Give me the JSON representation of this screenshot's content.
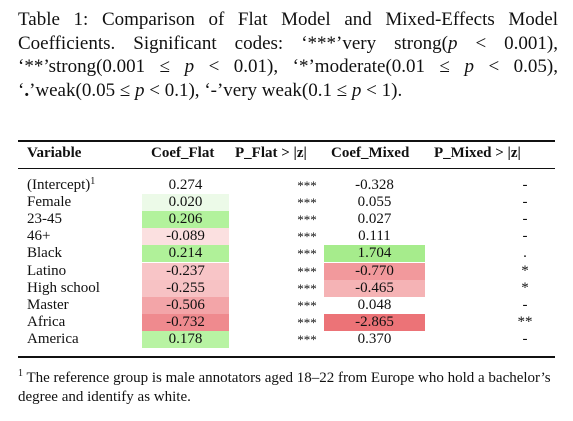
{
  "caption": {
    "label": "Table 1:",
    "title": "Comparison of Flat Model and Mixed-Effects Model Coefficients. Significant codes:",
    "codes": [
      {
        "code": "***",
        "desc": "very strong",
        "range": "(p < 0.001),"
      },
      {
        "code": "**",
        "desc": "strong",
        "range": "(0.001 ≤ p < 0.01),"
      },
      {
        "code": "*",
        "desc": "moderate",
        "range": "(0.01 ≤ p < 0.05),"
      },
      {
        "code": ".",
        "desc": "weak",
        "range": "(0.05 ≤ p < 0.1),"
      },
      {
        "code": "-",
        "desc": "very weak",
        "range": "(0.1 ≤ p < 1)."
      }
    ]
  },
  "table": {
    "headers": [
      "Variable",
      "Coef_Flat",
      "P_Flat > |z|",
      "Coef_Mixed",
      "P_Mixed > |z|"
    ],
    "rows": [
      {
        "variable": "(Intercept)",
        "sup": "1",
        "coef_flat": "0.274",
        "flat_bg": "",
        "p_flat": "***",
        "coef_mixed": "-0.328",
        "mixed_bg": "",
        "p_mixed": "-"
      },
      {
        "variable": "Female",
        "sup": "",
        "coef_flat": "0.020",
        "flat_bg": "#ecfae8",
        "p_flat": "***",
        "coef_mixed": "0.055",
        "mixed_bg": "",
        "p_mixed": "-"
      },
      {
        "variable": "23-45",
        "sup": "",
        "coef_flat": "0.206",
        "flat_bg": "#b2f29c",
        "p_flat": "***",
        "coef_mixed": "0.027",
        "mixed_bg": "",
        "p_mixed": "-"
      },
      {
        "variable": "46+",
        "sup": "",
        "coef_flat": "-0.089",
        "flat_bg": "#fbe0e0",
        "p_flat": "***",
        "coef_mixed": "0.111",
        "mixed_bg": "",
        "p_mixed": "-"
      },
      {
        "variable": "Black",
        "sup": "",
        "coef_flat": "0.214",
        "flat_bg": "#b0f199",
        "p_flat": "***",
        "coef_mixed": "1.704",
        "mixed_bg": "#a6ec8c",
        "p_mixed": "."
      },
      {
        "variable": "Latino",
        "sup": "",
        "coef_flat": "-0.237",
        "flat_bg": "#f8c5c7",
        "p_flat": "***",
        "coef_mixed": "-0.770",
        "mixed_bg": "#f2999c",
        "p_mixed": "*"
      },
      {
        "variable": "High school",
        "sup": "",
        "coef_flat": "-0.255",
        "flat_bg": "#f7c2c4",
        "p_flat": "***",
        "coef_mixed": "-0.465",
        "mixed_bg": "#f5b3b5",
        "p_mixed": "*"
      },
      {
        "variable": "Master",
        "sup": "",
        "coef_flat": "-0.506",
        "flat_bg": "#f3a5a8",
        "p_flat": "***",
        "coef_mixed": "0.048",
        "mixed_bg": "",
        "p_mixed": "-"
      },
      {
        "variable": "Africa",
        "sup": "",
        "coef_flat": "-0.732",
        "flat_bg": "#ef8a8e",
        "p_flat": "***",
        "coef_mixed": "-2.865",
        "mixed_bg": "#ec7377",
        "p_mixed": "**"
      },
      {
        "variable": "America",
        "sup": "",
        "coef_flat": "0.178",
        "flat_bg": "#b8f3a3",
        "p_flat": "***",
        "coef_mixed": "0.370",
        "mixed_bg": "",
        "p_mixed": "-"
      }
    ]
  },
  "footnote": {
    "sup": "1",
    "text": "The reference group is male annotators aged 18–22 from Europe who hold a bachelor’s degree and identify as white."
  }
}
